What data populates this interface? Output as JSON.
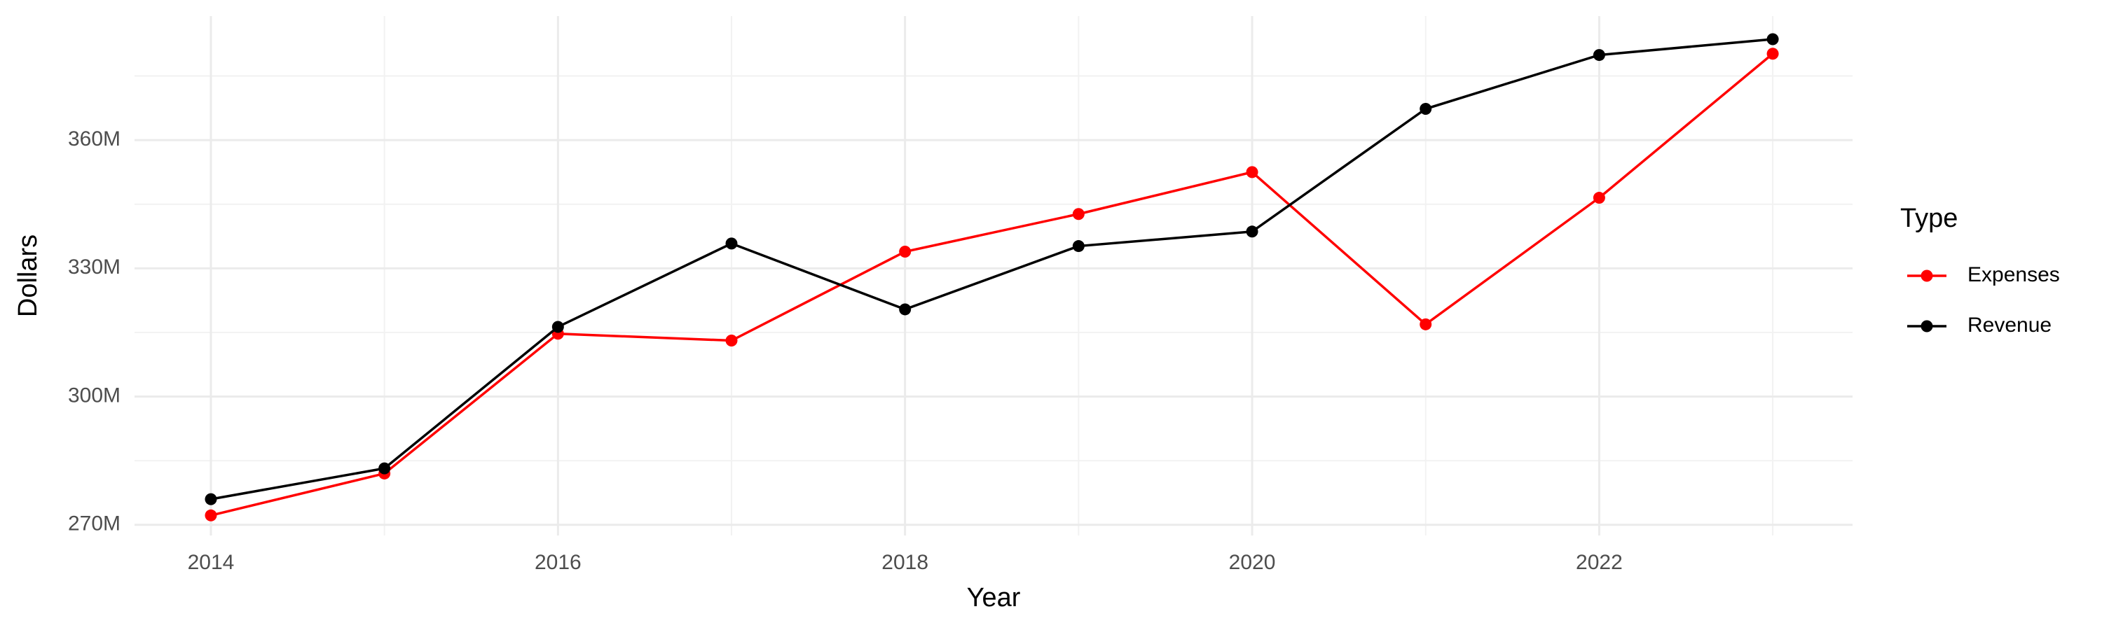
{
  "chart_data": {
    "type": "line",
    "x_label": "Year",
    "y_label": "Dollars",
    "legend_title": "Type",
    "x": [
      2014,
      2015,
      2016,
      2017,
      2018,
      2019,
      2020,
      2021,
      2022,
      2023
    ],
    "series": [
      {
        "name": "Expenses",
        "color": "#ff0000",
        "values": [
          272200000,
          282000000,
          314700000,
          313100000,
          333900000,
          342700000,
          352500000,
          316900000,
          346500000,
          380200000
        ]
      },
      {
        "name": "Revenue",
        "color": "#000000",
        "values": [
          276000000,
          283200000,
          316300000,
          335800000,
          320400000,
          335200000,
          338600000,
          367300000,
          379900000,
          383600000
        ]
      }
    ],
    "xlim": [
      2013.56,
      2023.46
    ],
    "xticks": [
      2014,
      2016,
      2018,
      2020,
      2022
    ],
    "ylim": [
      267500000,
      389000000
    ],
    "yticks": [
      {
        "value": 270000000,
        "label": "270M"
      },
      {
        "value": 300000000,
        "label": "300M"
      },
      {
        "value": 330000000,
        "label": "330M"
      },
      {
        "value": 360000000,
        "label": "360M"
      }
    ],
    "grid": true,
    "legend": "right"
  }
}
